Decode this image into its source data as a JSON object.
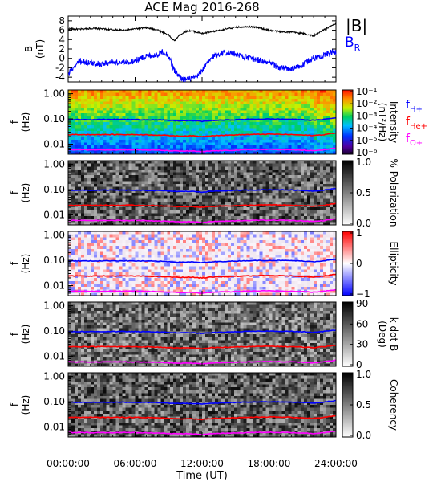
{
  "chart_data": [
    {
      "type": "line",
      "title": "ACE Mag 2016-268",
      "ylabel": "B",
      "yunit": "(nT)",
      "ylim": [
        -5,
        9
      ],
      "y_ticks": [
        "-4",
        "-2",
        "0",
        "2",
        "4",
        "6",
        "8"
      ],
      "series": [
        {
          "name": "|B|",
          "color": "#000000",
          "x_hours": [
            0,
            1,
            2,
            3,
            4,
            5,
            6,
            7,
            8,
            9,
            9.5,
            10,
            10.5,
            11,
            12,
            13,
            14,
            15,
            16,
            17,
            18,
            19,
            20,
            21,
            22,
            23,
            24
          ],
          "values": [
            6.3,
            6.2,
            6.4,
            6.3,
            6.1,
            6.0,
            6.3,
            6.5,
            6.1,
            5.0,
            3.7,
            5.0,
            5.7,
            5.9,
            5.3,
            5.7,
            6.2,
            6.6,
            6.8,
            6.6,
            6.0,
            5.7,
            5.6,
            5.3,
            4.8,
            6.2,
            7.4
          ]
        },
        {
          "name": "B",
          "sub": "R",
          "color": "#0000ff",
          "x_hours": [
            0,
            0.5,
            1,
            2,
            3,
            4,
            5,
            6,
            7,
            8,
            8.5,
            9,
            9.5,
            10,
            10.5,
            11,
            11.5,
            12,
            13,
            14,
            15,
            16,
            17,
            18,
            19,
            20,
            21,
            21.5,
            22,
            23,
            24
          ],
          "values": [
            -3.5,
            -1.8,
            -0.5,
            -1.0,
            -1.2,
            -0.8,
            -1.0,
            -0.5,
            0.5,
            0.8,
            1.5,
            0.5,
            -2.5,
            -4.0,
            -4.5,
            -4.3,
            -4.0,
            -2.5,
            0.5,
            1.3,
            1.0,
            0.2,
            -0.3,
            -1.0,
            -2.0,
            -2.3,
            -1.5,
            -0.5,
            0.0,
            0.8,
            1.5
          ]
        }
      ]
    },
    {
      "type": "heatmap",
      "quantity": "Intensity",
      "ylabel": "f",
      "yunit": "(Hz)",
      "yscale": "log",
      "y_ticks": [
        "1.00",
        "0.10",
        "0.01"
      ],
      "colorbar": {
        "label": "Intensity",
        "unit": "(nT²/Hz)",
        "scale": "log",
        "range": [
          1e-06,
          0.1
        ],
        "ticks": [
          "10⁻¹",
          "10⁻²",
          "10⁻³",
          "10⁻⁴",
          "10⁻⁵",
          "10⁻⁶"
        ],
        "colormap": "rainbow"
      },
      "legend": [
        {
          "base": "f",
          "sub": "H+",
          "color": "#0000ff"
        },
        {
          "base": "f",
          "sub": "He+",
          "color": "#ff0000"
        },
        {
          "base": "f",
          "sub": "O+",
          "color": "#ff00ff"
        }
      ]
    },
    {
      "type": "heatmap",
      "quantity": "% Polarization",
      "ylabel": "f",
      "yunit": "(Hz)",
      "yscale": "log",
      "y_ticks": [
        "1.00",
        "0.10",
        "0.01"
      ],
      "colorbar": {
        "label": "% Polarization",
        "range": [
          0,
          1
        ],
        "ticks": [
          "1.0",
          "0.5",
          "0.0"
        ],
        "colormap": "gray"
      }
    },
    {
      "type": "heatmap",
      "quantity": "Ellipticity",
      "ylabel": "f",
      "yunit": "(Hz)",
      "yscale": "log",
      "y_ticks": [
        "1.00",
        "0.10",
        "0.01"
      ],
      "colorbar": {
        "label": "Ellipticity",
        "range": [
          -1,
          1
        ],
        "ticks": [
          "1",
          "0",
          "−1"
        ],
        "colormap": "blue-white-red"
      }
    },
    {
      "type": "heatmap",
      "quantity": "k dot B",
      "ylabel": "f",
      "yunit": "(Hz)",
      "yscale": "log",
      "y_ticks": [
        "1.00",
        "0.10",
        "0.01"
      ],
      "colorbar": {
        "label": "k dot B",
        "unit": "(Deg)",
        "range": [
          0,
          90
        ],
        "ticks": [
          "90",
          "60",
          "30",
          "0"
        ],
        "colormap": "gray"
      }
    },
    {
      "type": "heatmap",
      "quantity": "Coherency",
      "ylabel": "f",
      "yunit": "(Hz)",
      "yscale": "log",
      "y_ticks": [
        "1.00",
        "0.10",
        "0.01"
      ],
      "colorbar": {
        "label": "Coherency",
        "range": [
          0,
          1
        ],
        "ticks": [
          "1.0",
          "0.5",
          "0.0"
        ],
        "colormap": "gray"
      },
      "x_ticks": [
        "00:00:00",
        "06:00:00",
        "12:00:00",
        "18:00:00",
        "24:00:00"
      ],
      "xlabel": "Time (UT)"
    }
  ],
  "gyrofrequencies": {
    "x_hours": [
      0,
      2,
      4,
      6,
      8,
      9,
      10,
      11,
      12,
      13,
      14,
      16,
      18,
      20,
      21,
      22,
      23,
      24
    ],
    "H+": [
      0.095,
      0.094,
      0.096,
      0.094,
      0.092,
      0.088,
      0.084,
      0.086,
      0.08,
      0.087,
      0.09,
      0.096,
      0.099,
      0.097,
      0.093,
      0.088,
      0.097,
      0.11
    ],
    "He+": [
      0.024,
      0.024,
      0.024,
      0.024,
      0.023,
      0.022,
      0.021,
      0.0215,
      0.02,
      0.022,
      0.0225,
      0.024,
      0.025,
      0.024,
      0.023,
      0.022,
      0.024,
      0.028
    ],
    "O+": [
      0.006,
      0.006,
      0.006,
      0.006,
      0.0058,
      0.0055,
      0.0053,
      0.0054,
      0.005,
      0.0055,
      0.0056,
      0.006,
      0.0062,
      0.006,
      0.0058,
      0.0055,
      0.006,
      0.007
    ]
  }
}
